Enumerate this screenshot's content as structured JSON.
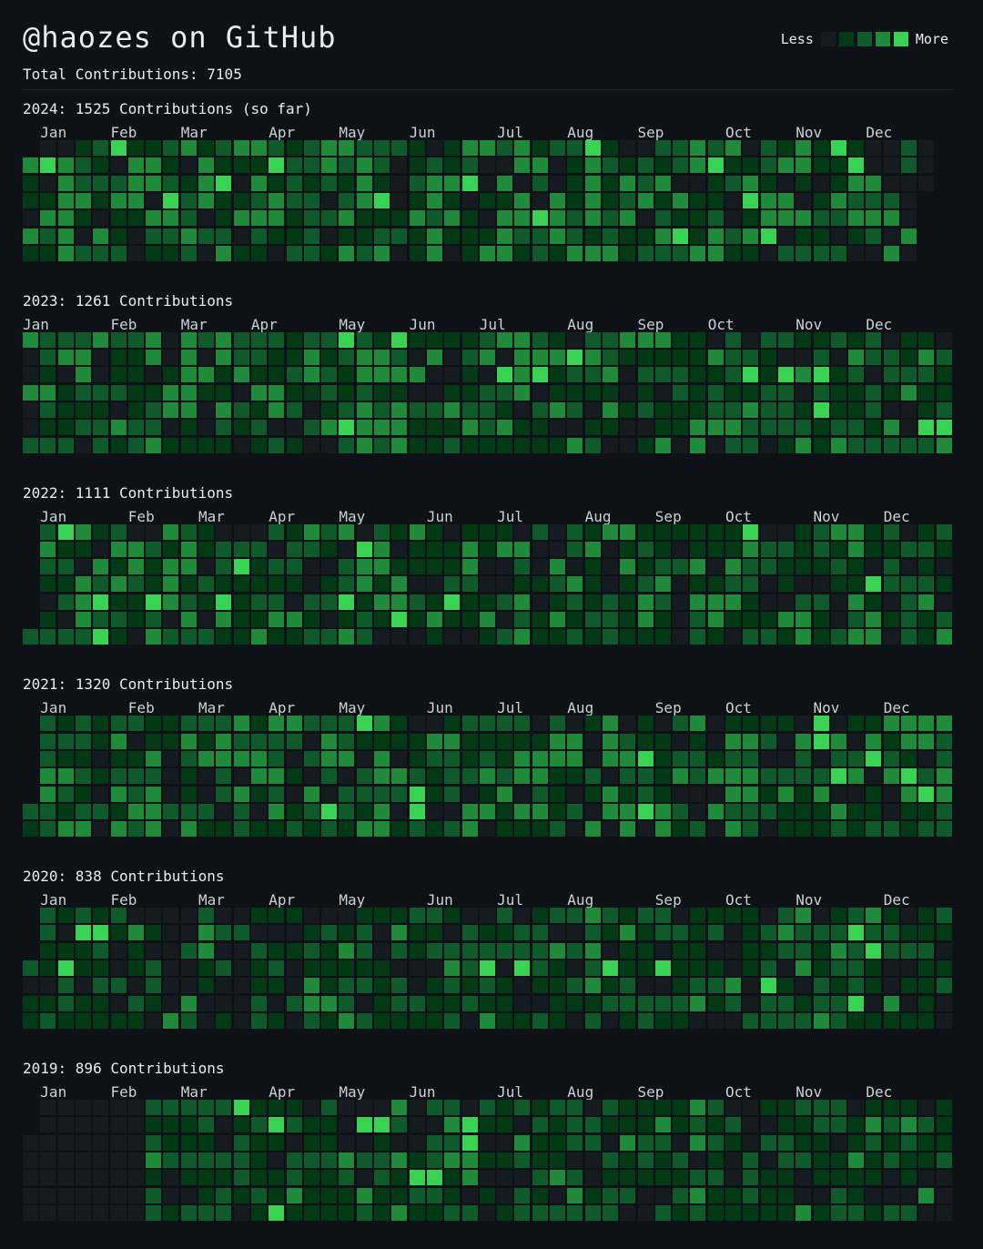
{
  "header": {
    "title": "@haozes on GitHub",
    "total_label": "Total Contributions: 7105"
  },
  "legend": {
    "less": "Less",
    "more": "More",
    "colors": [
      "#161b22",
      "#033a16",
      "#0e5a2a",
      "#1f8a3a",
      "#39d353"
    ]
  },
  "chart_data": [
    {
      "type": "heatmap",
      "year": 2024,
      "title": "2024: 1525 Contributions (so far)",
      "months": [
        "Jan",
        "Feb",
        "Mar",
        "Apr",
        "May",
        "Jun",
        "Jul",
        "Aug",
        "Sep",
        "Oct",
        "Nov",
        "Dec"
      ],
      "month_weeks": [
        1,
        5,
        9,
        14,
        18,
        22,
        27,
        31,
        35,
        40,
        44,
        48
      ],
      "weeks": 52,
      "first_day": 1,
      "last_week_days": 3,
      "total": 1525,
      "peaks": [
        [
          1,
          1
        ],
        [
          5,
          0
        ],
        [
          8,
          3
        ],
        [
          11,
          2
        ],
        [
          14,
          1
        ],
        [
          20,
          3
        ],
        [
          25,
          2
        ],
        [
          29,
          4
        ],
        [
          32,
          0
        ],
        [
          37,
          5
        ],
        [
          39,
          1
        ],
        [
          41,
          3
        ],
        [
          42,
          5
        ],
        [
          46,
          0
        ],
        [
          47,
          1
        ]
      ]
    },
    {
      "type": "heatmap",
      "year": 2023,
      "title": "2023: 1261 Contributions",
      "months": [
        "Jan",
        "Feb",
        "Mar",
        "Apr",
        "May",
        "Jun",
        "Jul",
        "Aug",
        "Sep",
        "Oct",
        "Nov",
        "Dec"
      ],
      "month_weeks": [
        0,
        5,
        9,
        13,
        18,
        22,
        26,
        31,
        35,
        39,
        44,
        48
      ],
      "weeks": 53,
      "first_day": 0,
      "last_week_days": 7,
      "total": 1261,
      "peaks": [
        [
          18,
          0
        ],
        [
          18,
          5
        ],
        [
          27,
          2
        ],
        [
          29,
          2
        ],
        [
          31,
          1
        ],
        [
          41,
          2
        ],
        [
          43,
          2
        ],
        [
          45,
          2
        ],
        [
          45,
          4
        ],
        [
          51,
          5
        ],
        [
          52,
          5
        ],
        [
          21,
          0
        ]
      ]
    },
    {
      "type": "heatmap",
      "year": 2022,
      "title": "2022: 1111 Contributions",
      "months": [
        "Jan",
        "Feb",
        "Mar",
        "Apr",
        "May",
        "Jun",
        "Jul",
        "Aug",
        "Sep",
        "Oct",
        "Nov",
        "Dec"
      ],
      "month_weeks": [
        1,
        6,
        10,
        14,
        18,
        23,
        27,
        32,
        36,
        40,
        45,
        49
      ],
      "weeks": 53,
      "first_day": 6,
      "last_week_days": 7,
      "total": 1111,
      "peaks": [
        [
          2,
          0
        ],
        [
          4,
          4
        ],
        [
          4,
          6
        ],
        [
          7,
          4
        ],
        [
          12,
          2
        ],
        [
          11,
          4
        ],
        [
          18,
          4
        ],
        [
          19,
          1
        ],
        [
          21,
          5
        ],
        [
          24,
          4
        ],
        [
          41,
          0
        ],
        [
          48,
          3
        ]
      ]
    },
    {
      "type": "heatmap",
      "year": 2021,
      "title": "2021: 1320 Contributions",
      "months": [
        "Jan",
        "Feb",
        "Mar",
        "Apr",
        "May",
        "Jun",
        "Jul",
        "Aug",
        "Sep",
        "Oct",
        "Nov",
        "Dec"
      ],
      "month_weeks": [
        1,
        6,
        10,
        14,
        18,
        23,
        27,
        31,
        36,
        40,
        45,
        49
      ],
      "weeks": 53,
      "first_day": 5,
      "last_week_days": 7,
      "total": 1320,
      "peaks": [
        [
          19,
          0
        ],
        [
          17,
          5
        ],
        [
          22,
          4
        ],
        [
          22,
          5
        ],
        [
          35,
          2
        ],
        [
          35,
          5
        ],
        [
          45,
          0
        ],
        [
          45,
          1
        ],
        [
          46,
          3
        ],
        [
          48,
          2
        ],
        [
          50,
          3
        ],
        [
          51,
          4
        ]
      ]
    },
    {
      "type": "heatmap",
      "year": 2020,
      "title": "2020: 838 Contributions",
      "months": [
        "Jan",
        "Feb",
        "Mar",
        "Apr",
        "May",
        "Jun",
        "Jul",
        "Aug",
        "Sep",
        "Oct",
        "Nov",
        "Dec"
      ],
      "month_weeks": [
        1,
        5,
        10,
        14,
        18,
        23,
        27,
        31,
        36,
        40,
        44,
        49
      ],
      "weeks": 53,
      "first_day": 3,
      "last_week_days": 7,
      "total": 838,
      "peaks": [
        [
          3,
          1
        ],
        [
          4,
          1
        ],
        [
          2,
          3
        ],
        [
          26,
          3
        ],
        [
          28,
          3
        ],
        [
          33,
          3
        ],
        [
          36,
          3
        ],
        [
          42,
          4
        ],
        [
          47,
          1
        ],
        [
          48,
          2
        ],
        [
          47,
          5
        ]
      ]
    },
    {
      "type": "heatmap",
      "year": 2019,
      "title": "2019: 896 Contributions",
      "months": [
        "Jan",
        "Feb",
        "Mar",
        "Apr",
        "May",
        "Jun",
        "Jul",
        "Aug",
        "Sep",
        "Oct",
        "Nov",
        "Dec"
      ],
      "month_weeks": [
        1,
        5,
        9,
        14,
        18,
        22,
        27,
        31,
        35,
        40,
        44,
        48
      ],
      "weeks": 53,
      "first_day": 2,
      "last_week_days": 7,
      "total": 896,
      "peaks": [
        [
          12,
          0
        ],
        [
          14,
          1
        ],
        [
          19,
          1
        ],
        [
          20,
          1
        ],
        [
          25,
          1
        ],
        [
          25,
          2
        ],
        [
          14,
          6
        ],
        [
          23,
          4
        ],
        [
          22,
          4
        ]
      ]
    }
  ]
}
